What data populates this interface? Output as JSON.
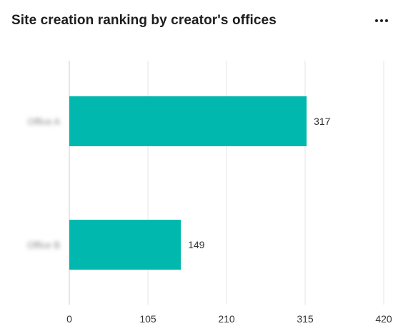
{
  "title": "Site creation ranking by creator's offices",
  "menu_icon": "more-horizontal-icon",
  "colors": {
    "bar": "#00b8ad",
    "grid": "#e6e6e6",
    "axis": "#cccccc"
  },
  "chart_data": {
    "type": "bar",
    "orientation": "horizontal",
    "categories": [
      "Office A",
      "Office B"
    ],
    "categories_blurred": true,
    "values": [
      317,
      149
    ],
    "data_labels": [
      "317",
      "149"
    ],
    "xlim": [
      0,
      420
    ],
    "xticks": [
      0,
      105,
      210,
      315,
      420
    ],
    "grid": true,
    "legend": "none"
  }
}
